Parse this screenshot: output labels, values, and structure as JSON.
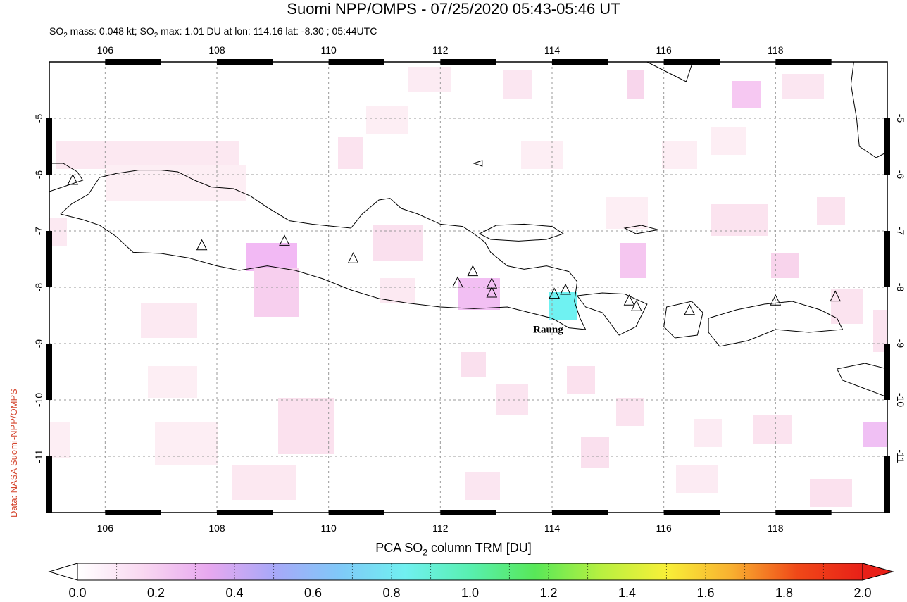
{
  "header": {
    "title": "Suomi NPP/OMPS - 07/25/2020 05:43-05:46 UT",
    "subtitle_prefix": "SO",
    "subtitle_sub1": "2",
    "subtitle_mid": " mass: 0.048 kt; SO",
    "subtitle_sub2": "2",
    "subtitle_rest": " max: 1.01 DU at lon: 114.16 lat: -8.30 ; 05:44UTC"
  },
  "credit": "Data: NASA Suomi-NPP/OMPS",
  "map": {
    "lon_range": [
      105.0,
      120.0
    ],
    "lat_range": [
      -12.0,
      -4.0
    ],
    "lon_ticks": [
      "106",
      "108",
      "110",
      "112",
      "114",
      "116",
      "118"
    ],
    "lat_ticks": [
      "-5",
      "-6",
      "-7",
      "-8",
      "-9",
      "-10",
      "-11"
    ],
    "volcano_label": "Raung",
    "volcanoes": [
      [
        105.42,
        -6.1
      ],
      [
        107.73,
        -7.26
      ],
      [
        109.21,
        -7.18
      ],
      [
        110.44,
        -7.49
      ],
      [
        112.31,
        -7.92
      ],
      [
        112.58,
        -7.72
      ],
      [
        112.92,
        -7.94
      ],
      [
        112.92,
        -8.1
      ],
      [
        114.04,
        -8.12
      ],
      [
        114.24,
        -8.05
      ],
      [
        115.38,
        -8.24
      ],
      [
        115.51,
        -8.34
      ],
      [
        116.46,
        -8.41
      ],
      [
        118.0,
        -8.24
      ],
      [
        119.07,
        -8.17
      ]
    ],
    "colors": {
      "max_pixel": "#6ff2f2",
      "weak_pink": "#fbe3ef",
      "light_pink": "#f8d2e8",
      "violet": "#f0b8f4",
      "grid": "#999999"
    }
  },
  "colorbar": {
    "title_prefix": "PCA SO",
    "title_sub": "2",
    "title_rest": " column TRM [DU]",
    "ticks": [
      "0.0",
      "0.2",
      "0.4",
      "0.6",
      "0.8",
      "1.0",
      "1.2",
      "1.4",
      "1.6",
      "1.8",
      "2.0"
    ],
    "range": [
      0.0,
      2.0
    ],
    "stops": [
      "#ffffff",
      "#f9d8f1",
      "#e8a8ef",
      "#a8a8f8",
      "#80c8f8",
      "#70f0f0",
      "#58f0b0",
      "#58e858",
      "#b8f040",
      "#f8f038",
      "#f8b030",
      "#f04818",
      "#e82018"
    ]
  }
}
